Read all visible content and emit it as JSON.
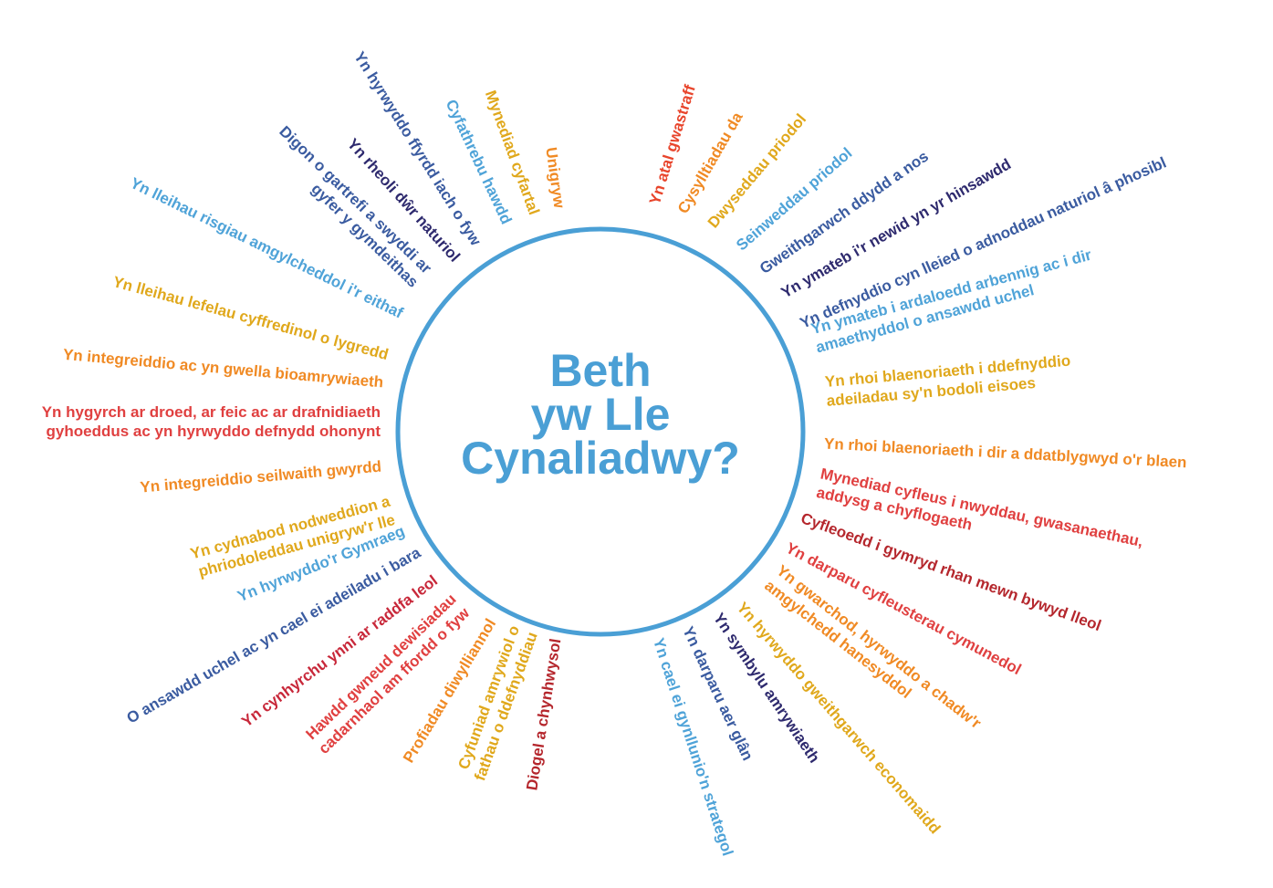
{
  "title": [
    "Beth",
    "yw Lle",
    "Cynaliadwy?"
  ],
  "items": [
    [
      "Yn atal gwastraff"
    ],
    [
      "Cysylltiadau da"
    ],
    [
      "Dwyseddau priodol"
    ],
    [
      "Seinweddau priodol"
    ],
    [
      "Gweithgarwch ddydd a nos"
    ],
    [
      "Yn ymateb i'r newid yn yr hinsawdd"
    ],
    [
      "Yn defnyddio cyn lleied o adnoddau naturiol â phosibl"
    ],
    [
      "Yn ymateb i ardaloedd arbennig ac i dir",
      "amaethyddol o ansawdd uchel"
    ],
    [
      "Yn rhoi blaenoriaeth i ddefnyddio",
      "adeiladau sy'n bodoli eisoes"
    ],
    [
      "Yn rhoi blaenoriaeth i dir a ddatblygwyd o'r blaen"
    ],
    [
      "Mynediad cyfleus i nwyddau, gwasanaethau,",
      "addysg a chyflogaeth"
    ],
    [
      "Cyfleoedd i gymryd rhan mewn bywyd lleol"
    ],
    [
      "Yn darparu cyfleusterau cymunedol"
    ],
    [
      "Yn gwarchod, hyrwyddo a chadw'r",
      "amgylchedd hanesyddol"
    ],
    [
      "Yn hyrwyddo gweithgarwch economaidd"
    ],
    [
      "Yn symbylu amrywiaeth"
    ],
    [
      "Yn darparu aer glân"
    ],
    [
      "Yn cael ei gynllunio'n strategol"
    ],
    [
      "Diogel a chynhwysol"
    ],
    [
      "Cyfuniad amrywiol o",
      "fathau o ddefnyddiau"
    ],
    [
      "Profiadau diwylliannol"
    ],
    [
      "Hawdd gwneud dewisiadau",
      "cadarnhaol am ffordd o fyw"
    ],
    [
      "Yn cynhyrchu ynni ar raddfa leol"
    ],
    [
      "O ansawdd uchel ac yn cael ei adeiladu i bara"
    ],
    [
      "Yn hyrwyddo'r Gymraeg"
    ],
    [
      "Yn cydnabod nodweddion a",
      "phriodoleddau unigryw'r lle"
    ],
    [
      "Yn integreiddio seilwaith gwyrdd"
    ],
    [
      "Yn hygyrch ar droed, ar feic ac ar drafnidiaeth",
      "gyhoeddus ac yn hyrwyddo defnydd ohonynt"
    ],
    [
      "Yn integreiddio ac yn gwella bioamrywiaeth"
    ],
    [
      "Yn lleihau lefelau cyffredinol o lygredd"
    ],
    [
      "Yn lleihau risgiau amgylcheddol i'r eithaf"
    ],
    [
      "Digon o gartrefi a swyddi ar",
      "gyfer y gymdeithas"
    ],
    [
      "Yn rheoli dŵr naturiol"
    ],
    [
      "Yn hyrwyddo ffyrdd iach o fyw"
    ],
    [
      "Cyfathrebu hawdd"
    ],
    [
      "Mynediad cyfartal"
    ],
    [
      "Unigryw"
    ]
  ]
}
